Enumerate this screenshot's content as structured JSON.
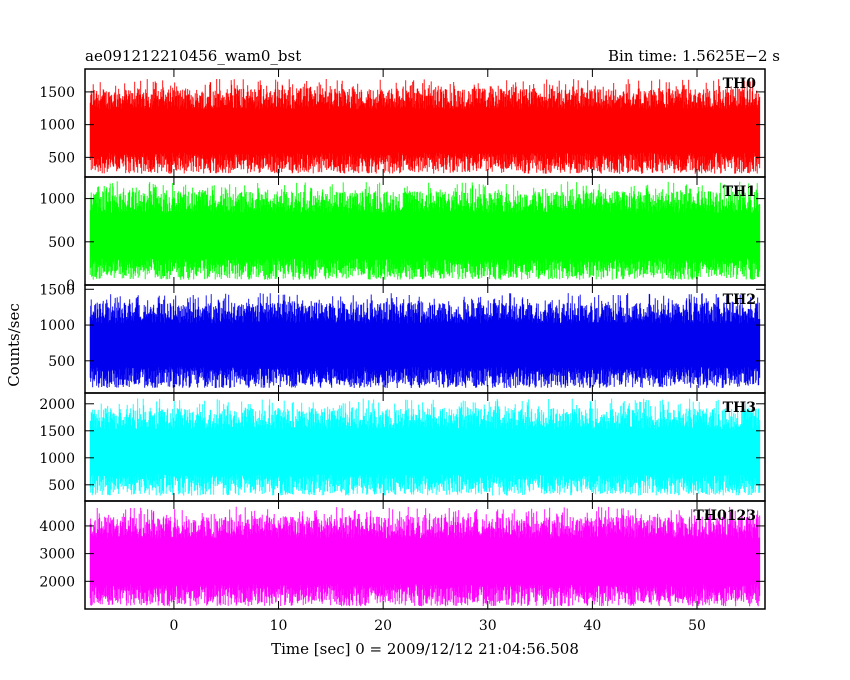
{
  "chart_data": {
    "type": "line",
    "title": "ae091212210456_wam0_bst",
    "subtitle": "Bin time: 1.5625E−2 s",
    "xlabel": "Time [sec] 0 = 2009/12/12 21:04:56.508",
    "ylabel": "Counts/sec",
    "xlim": [
      -8.5,
      56.5
    ],
    "x_data_range": [
      -8,
      56
    ],
    "x_ticks": [
      0,
      10,
      20,
      30,
      40,
      50
    ],
    "x_tick_labels": [
      "0",
      "10",
      "20",
      "30",
      "40",
      "50"
    ],
    "grid": false,
    "legend": "panel labels at top-right of each panel",
    "panels": [
      {
        "name": "TH0",
        "color": "#ff0000",
        "ylim": [
          200,
          1850
        ],
        "y_ticks": [
          500,
          1000,
          1500
        ],
        "y_tick_labels": [
          "500",
          "1000",
          "1500"
        ],
        "range_min": 250,
        "range_max": 1700
      },
      {
        "name": "TH1",
        "color": "#00ff00",
        "ylim": [
          0,
          1250
        ],
        "y_ticks": [
          0,
          500,
          1000
        ],
        "y_tick_labels": [
          "0",
          "500",
          "1000"
        ],
        "range_min": 60,
        "range_max": 1200
      },
      {
        "name": "TH2",
        "color": "#0000ee",
        "ylim": [
          50,
          1560
        ],
        "y_ticks": [
          500,
          1000,
          1500
        ],
        "y_tick_labels": [
          "500",
          "1000",
          "1500"
        ],
        "range_min": 120,
        "range_max": 1450
      },
      {
        "name": "TH3",
        "color": "#00ffff",
        "ylim": [
          200,
          2200
        ],
        "y_ticks": [
          500,
          1000,
          1500,
          2000
        ],
        "y_tick_labels": [
          "500",
          "1000",
          "1500",
          "2000"
        ],
        "range_min": 300,
        "range_max": 2100
      },
      {
        "name": "TH0123",
        "color": "#ff00ff",
        "ylim": [
          1000,
          4900
        ],
        "y_ticks": [
          2000,
          3000,
          4000
        ],
        "y_tick_labels": [
          "2000",
          "3000",
          "4000"
        ],
        "range_min": 1100,
        "range_max": 4700
      }
    ]
  }
}
